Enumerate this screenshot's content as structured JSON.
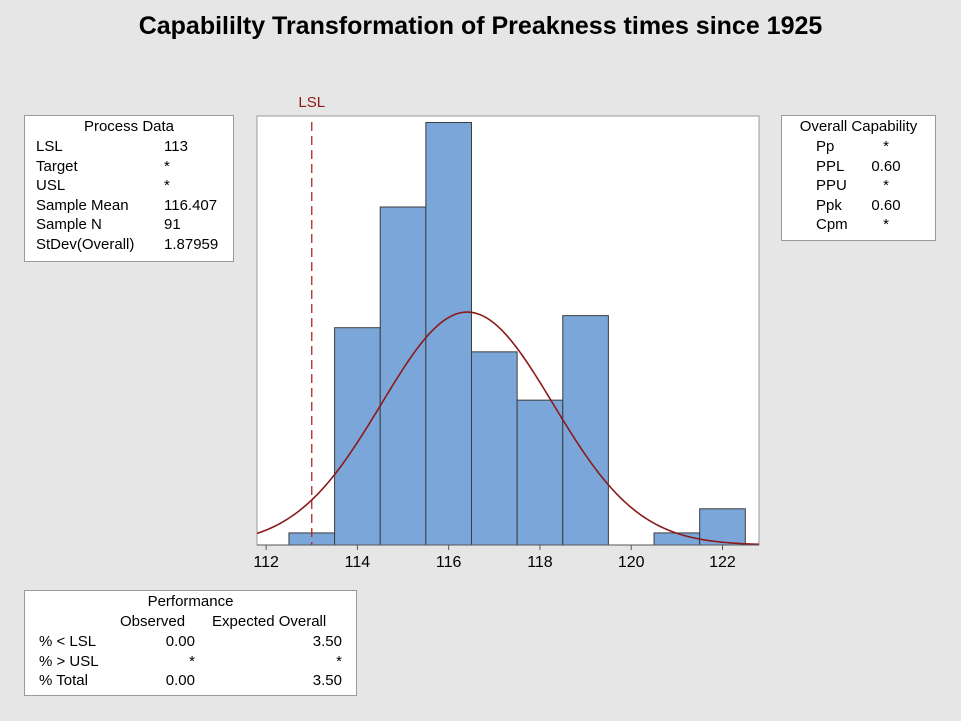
{
  "title": "Capabililty Transformation of Preakness times since 1925",
  "process_data": {
    "header": "Process Data",
    "rows": [
      {
        "label": "LSL",
        "value": "113"
      },
      {
        "label": "Target",
        "value": "*"
      },
      {
        "label": "USL",
        "value": "*"
      },
      {
        "label": "Sample Mean",
        "value": "116.407"
      },
      {
        "label": "Sample N",
        "value": "91"
      },
      {
        "label": "StDev(Overall)",
        "value": "1.87959"
      }
    ]
  },
  "overall_capability": {
    "header": "Overall Capability",
    "rows": [
      {
        "label": "Pp",
        "value": "*"
      },
      {
        "label": "PPL",
        "value": "0.60"
      },
      {
        "label": "PPU",
        "value": "*"
      },
      {
        "label": "Ppk",
        "value": "0.60"
      },
      {
        "label": "Cpm",
        "value": "*"
      }
    ]
  },
  "performance": {
    "header": "Performance",
    "col_observed": "Observed",
    "col_expected": "Expected Overall",
    "rows": [
      {
        "label": "% < LSL",
        "observed": "0.00",
        "expected": "3.50"
      },
      {
        "label": "% > USL",
        "observed": "*",
        "expected": "*"
      },
      {
        "label": "% Total",
        "observed": "0.00",
        "expected": "3.50"
      }
    ]
  },
  "chart_data": {
    "type": "bar",
    "xlim": [
      111.8,
      122.8
    ],
    "ylim": [
      0,
      0.39
    ],
    "x_ticks": [
      112,
      114,
      116,
      118,
      120,
      122
    ],
    "bins": [
      {
        "from": 112.5,
        "to": 113.5,
        "density": 0.011
      },
      {
        "from": 113.5,
        "to": 114.5,
        "density": 0.198
      },
      {
        "from": 114.5,
        "to": 115.5,
        "density": 0.308
      },
      {
        "from": 115.5,
        "to": 116.5,
        "density": 0.385
      },
      {
        "from": 116.5,
        "to": 117.5,
        "density": 0.176
      },
      {
        "from": 117.5,
        "to": 118.5,
        "density": 0.132
      },
      {
        "from": 118.5,
        "to": 119.5,
        "density": 0.209
      },
      {
        "from": 119.5,
        "to": 120.5,
        "density": 0
      },
      {
        "from": 120.5,
        "to": 121.5,
        "density": 0.011
      },
      {
        "from": 121.5,
        "to": 122.5,
        "density": 0.033
      }
    ],
    "normal_curve": {
      "mean": 116.407,
      "stdev": 1.87959
    },
    "lsl": {
      "label": "LSL",
      "value": 113
    },
    "colors": {
      "bar_fill": "#7ba6da",
      "bar_stroke": "#3c3c3c",
      "curve": "#8b1a1a",
      "lsl_line": "#b22222"
    }
  }
}
